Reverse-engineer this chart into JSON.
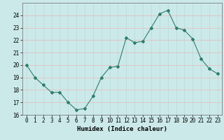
{
  "x": [
    0,
    1,
    2,
    3,
    4,
    5,
    6,
    7,
    8,
    9,
    10,
    11,
    12,
    13,
    14,
    15,
    16,
    17,
    18,
    19,
    20,
    21,
    22,
    23
  ],
  "y": [
    20.0,
    19.0,
    18.4,
    17.8,
    17.8,
    17.0,
    16.4,
    16.5,
    17.5,
    19.0,
    19.8,
    19.9,
    22.2,
    21.8,
    21.9,
    23.0,
    24.1,
    24.4,
    23.0,
    22.8,
    22.1,
    20.5,
    19.7,
    19.3
  ],
  "line_color": "#2e7d6e",
  "marker": "D",
  "marker_size": 2.0,
  "bg_color": "#cce9e9",
  "grid_color_h": "#e8b8b8",
  "grid_color_v": "#b8d8d8",
  "xlabel": "Humidex (Indice chaleur)",
  "ylim": [
    16,
    25
  ],
  "xlim": [
    -0.5,
    23.5
  ],
  "yticks": [
    16,
    17,
    18,
    19,
    20,
    21,
    22,
    23,
    24
  ],
  "xticks": [
    0,
    1,
    2,
    3,
    4,
    5,
    6,
    7,
    8,
    9,
    10,
    11,
    12,
    13,
    14,
    15,
    16,
    17,
    18,
    19,
    20,
    21,
    22,
    23
  ],
  "label_fontsize": 6.5,
  "tick_fontsize": 5.5
}
